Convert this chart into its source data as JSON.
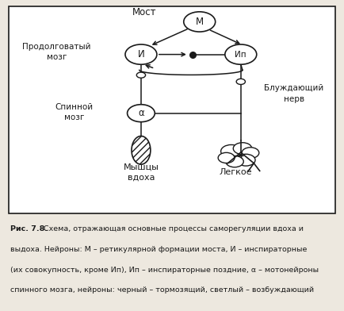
{
  "bg_color": "#ede8df",
  "box_color": "#ffffff",
  "line_color": "#1a1a1a",
  "title": "Мост",
  "label_medulla": "Продолговатый\nмозг",
  "label_spinal": "Спинной\nмозг",
  "label_vagus": "Блуждающий\nнерв",
  "label_lung": "Легкое",
  "label_muscle": "Мышцы\nвдоха",
  "caption_bold": "Рис. 7.8.",
  "caption_normal": "Схема, отражающая основные процессы саморегуляции вдоха и выдоха. Нейроны: М – ретикулярной формации моста, И – инспираторные (их совокупность, кроме Ип), Ип – инспираторные поздние, α – мотонейроны спинного мозга, нейроны: черный – тормозящий, светлый – возбуждающий"
}
